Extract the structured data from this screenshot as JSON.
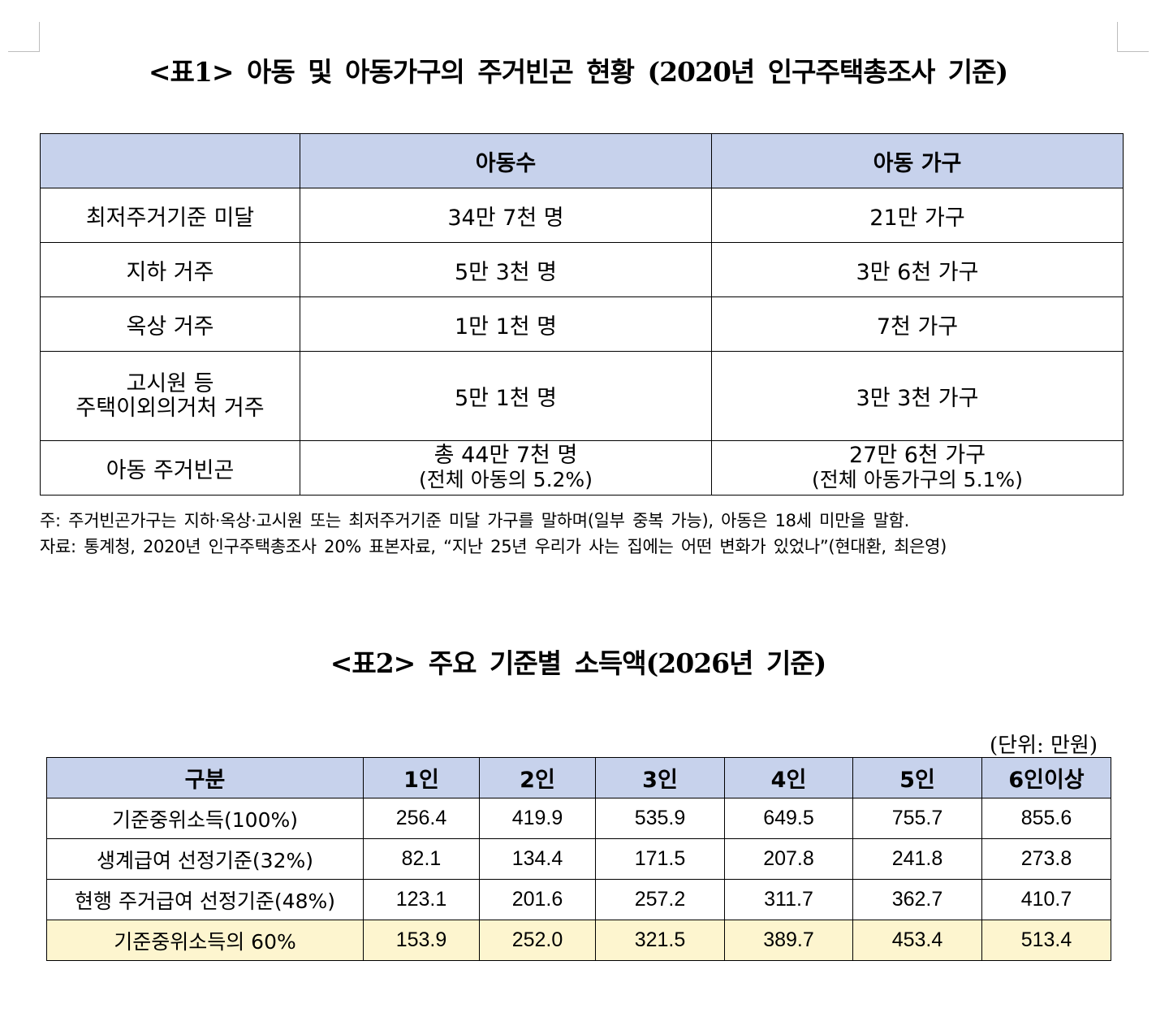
{
  "table1": {
    "title": "<표1> 아동 및 아동가구의 주거빈곤 현황 (2020년 인구주택총조사 기준)",
    "header": {
      "blank": "",
      "col1": "아동수",
      "col2": "아동 가구"
    },
    "rows": [
      {
        "label": "최저주거기준 미달",
        "children": "34만 7천 명",
        "households": "21만 가구"
      },
      {
        "label": "지하 거주",
        "children": "5만 3천 명",
        "households": "3만 6천 가구"
      },
      {
        "label": "옥상 거주",
        "children": "1만 1천 명",
        "households": "7천 가구"
      },
      {
        "label_line1": "고시원 등",
        "label_line2": "주택이외의거처 거주",
        "children": "5만 1천 명",
        "households": "3만 3천 가구"
      },
      {
        "label": "아동 주거빈곤",
        "children": "총 44만 7천 명",
        "children_sub": "(전체 아동의 5.2%)",
        "households": "27만 6천 가구",
        "households_sub": "(전체 아동가구의 5.1%)"
      }
    ],
    "note": "주: 주거빈곤가구는 지하·옥상·고시원 또는 최저주거기준 미달 가구를 말하며(일부 중복 가능), 아동은 18세 미만을 말함.",
    "source": "자료: 통계청, 2020년 인구주택총조사 20% 표본자료, “지난 25년 우리가 사는 집에는 어떤 변화가 있었나”(현대환, 최은영)"
  },
  "table2": {
    "title": "<표2> 주요 기준별 소득액(2026년 기준)",
    "unit": "(단위: 만원)",
    "headers": [
      "구분",
      "1인",
      "2인",
      "3인",
      "4인",
      "5인",
      "6인이상"
    ],
    "rows": [
      {
        "label": "기준중위소득(100%)",
        "values": [
          "256.4",
          "419.9",
          "535.9",
          "649.5",
          "755.7",
          "855.6"
        ]
      },
      {
        "label": "생계급여 선정기준(32%)",
        "values": [
          "82.1",
          "134.4",
          "171.5",
          "207.8",
          "241.8",
          "273.8"
        ]
      },
      {
        "label": "현행 주거급여 선정기준(48%)",
        "values": [
          "123.1",
          "201.6",
          "257.2",
          "311.7",
          "362.7",
          "410.7"
        ]
      },
      {
        "label": "기준중위소득의 60%",
        "values": [
          "153.9",
          "252.0",
          "321.5",
          "389.7",
          "453.4",
          "513.4"
        ]
      }
    ],
    "highlight_color": "#fdf5cf",
    "header_color": "#c7d2ec"
  }
}
